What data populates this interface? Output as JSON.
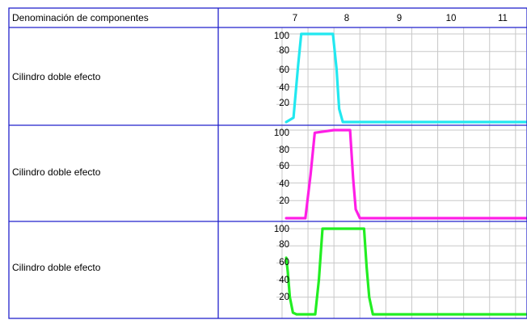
{
  "header": {
    "column_title": "Denominación de componentes",
    "time_ticks": [
      "7",
      "8",
      "9",
      "10",
      "11"
    ]
  },
  "rows": [
    {
      "label": "Cilindro doble efecto",
      "y_ticks": [
        "100",
        "80",
        "60",
        "40",
        "20"
      ],
      "color": "#22e8f0",
      "trace": [
        [
          6.83,
          0
        ],
        [
          6.97,
          5
        ],
        [
          7.06,
          65
        ],
        [
          7.12,
          100
        ],
        [
          7.73,
          100
        ],
        [
          7.8,
          60
        ],
        [
          7.85,
          15
        ],
        [
          7.92,
          0
        ],
        [
          11.9,
          0
        ]
      ]
    },
    {
      "label": "Cilindro doble efecto",
      "y_ticks": [
        "100",
        "80",
        "60",
        "40",
        "20"
      ],
      "color": "#ff1ee6",
      "trace": [
        [
          6.83,
          0
        ],
        [
          7.2,
          0
        ],
        [
          7.3,
          50
        ],
        [
          7.38,
          97
        ],
        [
          7.75,
          100
        ],
        [
          8.06,
          100
        ],
        [
          8.12,
          45
        ],
        [
          8.17,
          10
        ],
        [
          8.25,
          0
        ],
        [
          11.9,
          0
        ]
      ]
    },
    {
      "label": "Cilindro doble efecto",
      "y_ticks": [
        "100",
        "80",
        "60",
        "40",
        "20"
      ],
      "color": "#22ee22",
      "trace": [
        [
          6.83,
          66
        ],
        [
          6.86,
          50
        ],
        [
          6.9,
          20
        ],
        [
          6.96,
          2
        ],
        [
          7.03,
          0
        ],
        [
          7.39,
          0
        ],
        [
          7.46,
          40
        ],
        [
          7.53,
          100
        ],
        [
          8.33,
          100
        ],
        [
          8.38,
          55
        ],
        [
          8.43,
          20
        ],
        [
          8.5,
          0
        ],
        [
          11.9,
          0
        ]
      ]
    }
  ]
}
